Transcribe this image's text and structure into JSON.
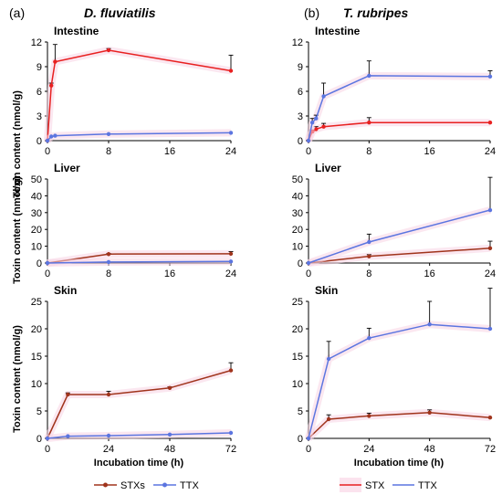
{
  "header": {
    "a_label": "(a)",
    "a_species": "D. fluviatilis",
    "b_label": "(b)",
    "b_species": "T. rubripes"
  },
  "y_axis_label": "Toxin content (nmol/g)",
  "x_axis_label": "Incubation time (h)",
  "legend_left": [
    {
      "label": "STXs",
      "color": "#a0341c"
    },
    {
      "label": "TTX",
      "color": "#5b75e0"
    }
  ],
  "legend_right": [
    {
      "label": "STX",
      "color": "#e82020"
    },
    {
      "label": "TTX",
      "color": "#5b75e0"
    }
  ],
  "chart_data": [
    {
      "type": "line",
      "panel": "a",
      "title": "Intestine",
      "xlim": [
        0,
        24
      ],
      "xticks": [
        0,
        8,
        16,
        24
      ],
      "ylim": [
        0,
        12
      ],
      "yticks": [
        0,
        3,
        6,
        9,
        12
      ],
      "series": [
        {
          "name": "STX",
          "color": "#e82020",
          "x": [
            0,
            0.5,
            1,
            8,
            24
          ],
          "y": [
            0,
            6.7,
            9.6,
            11.0,
            8.5
          ],
          "err": [
            0,
            0.3,
            2.1,
            0.2,
            1.9
          ]
        },
        {
          "name": "TTX",
          "color": "#5b75e0",
          "x": [
            0,
            0.5,
            1,
            8,
            24
          ],
          "y": [
            0,
            0.5,
            0.6,
            0.8,
            0.95
          ],
          "err": [
            0,
            0,
            0,
            0,
            0
          ]
        }
      ]
    },
    {
      "type": "line",
      "panel": "b",
      "title": "Intestine",
      "xlim": [
        0,
        24
      ],
      "xticks": [
        0,
        8,
        16,
        24
      ],
      "ylim": [
        0,
        12
      ],
      "yticks": [
        0,
        3,
        6,
        9,
        12
      ],
      "series": [
        {
          "name": "STX",
          "color": "#e82020",
          "x": [
            0,
            0.5,
            1,
            2,
            8,
            24
          ],
          "y": [
            0,
            1.1,
            1.4,
            1.7,
            2.2,
            2.2
          ],
          "err": [
            0,
            0.2,
            0.3,
            0.4,
            0.6,
            0
          ]
        },
        {
          "name": "TTX",
          "color": "#5b75e0",
          "x": [
            0,
            0.5,
            1,
            2,
            8,
            24
          ],
          "y": [
            0,
            2.2,
            2.7,
            5.4,
            7.9,
            7.8
          ],
          "err": [
            0,
            0.5,
            0.4,
            1.6,
            1.8,
            0.7
          ]
        }
      ]
    },
    {
      "type": "line",
      "panel": "a",
      "title": "Liver",
      "xlim": [
        0,
        24
      ],
      "xticks": [
        0,
        8,
        16,
        24
      ],
      "ylim": [
        0,
        50
      ],
      "yticks": [
        0,
        10,
        20,
        30,
        40,
        50
      ],
      "series": [
        {
          "name": "STXs",
          "color": "#a0341c",
          "x": [
            0,
            8,
            24
          ],
          "y": [
            0,
            5.3,
            5.5
          ],
          "err": [
            0,
            0.4,
            1.3
          ]
        },
        {
          "name": "TTX",
          "color": "#5b75e0",
          "x": [
            0,
            8,
            24
          ],
          "y": [
            0,
            0.6,
            0.9
          ],
          "err": [
            0,
            0,
            0
          ]
        }
      ]
    },
    {
      "type": "line",
      "panel": "b",
      "title": "Liver",
      "xlim": [
        0,
        24
      ],
      "xticks": [
        0,
        8,
        16,
        24
      ],
      "ylim": [
        0,
        50
      ],
      "yticks": [
        0,
        10,
        20,
        30,
        40,
        50
      ],
      "series": [
        {
          "name": "STX",
          "color": "#a0341c",
          "x": [
            0,
            8,
            24
          ],
          "y": [
            0,
            4.0,
            8.8
          ],
          "err": [
            0,
            1.0,
            4.2
          ]
        },
        {
          "name": "TTX",
          "color": "#5b75e0",
          "x": [
            0,
            8,
            24
          ],
          "y": [
            0,
            12.5,
            31.5
          ],
          "err": [
            0,
            4.7,
            19.5
          ]
        }
      ]
    },
    {
      "type": "line",
      "panel": "a",
      "title": "Skin",
      "xlim": [
        0,
        72
      ],
      "xticks": [
        0,
        24,
        48,
        72
      ],
      "ylim": [
        0,
        25
      ],
      "yticks": [
        0,
        5,
        10,
        15,
        20,
        25
      ],
      "series": [
        {
          "name": "STXs",
          "color": "#a0341c",
          "x": [
            0,
            8,
            24,
            48,
            72
          ],
          "y": [
            0,
            8.0,
            8.0,
            9.2,
            12.4
          ],
          "err": [
            0,
            0.3,
            0.6,
            0.2,
            1.4
          ]
        },
        {
          "name": "TTX",
          "color": "#5b75e0",
          "x": [
            0,
            8,
            24,
            48,
            72
          ],
          "y": [
            0,
            0.4,
            0.5,
            0.7,
            1.0
          ],
          "err": [
            0,
            0,
            0,
            0,
            0
          ]
        }
      ]
    },
    {
      "type": "line",
      "panel": "b",
      "title": "Skin",
      "xlim": [
        0,
        72
      ],
      "xticks": [
        0,
        24,
        48,
        72
      ],
      "ylim": [
        0,
        25
      ],
      "yticks": [
        0,
        5,
        10,
        15,
        20,
        25
      ],
      "series": [
        {
          "name": "STX",
          "color": "#a0341c",
          "x": [
            0,
            8,
            24,
            48,
            72
          ],
          "y": [
            0,
            3.5,
            4.1,
            4.7,
            3.8
          ],
          "err": [
            0,
            0.8,
            0.5,
            0.5,
            0
          ]
        },
        {
          "name": "TTX",
          "color": "#5b75e0",
          "x": [
            0,
            8,
            24,
            48,
            72
          ],
          "y": [
            0,
            14.5,
            18.3,
            20.8,
            20.0
          ],
          "err": [
            0,
            3.2,
            1.8,
            4.2,
            7.4
          ]
        }
      ]
    }
  ]
}
